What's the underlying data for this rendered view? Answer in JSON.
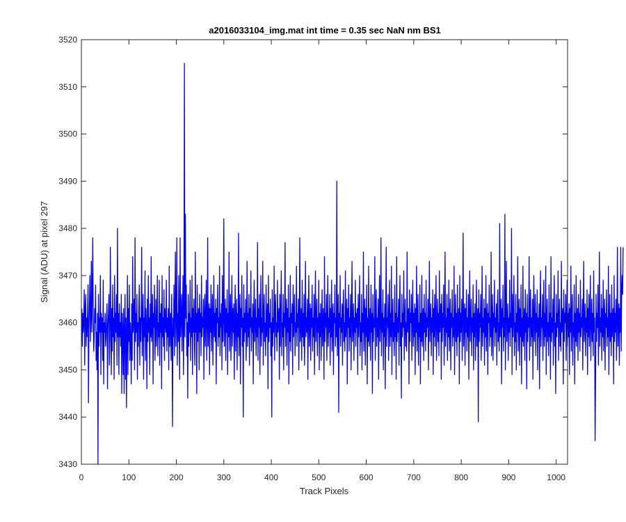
{
  "chart_data": {
    "type": "line",
    "title": "a2016033104_img.mat int time = 0.35 sec  NaN nm BS1",
    "xlabel": "Track Pixels",
    "ylabel": "Signal (ADU) at pixel 297",
    "xlim": [
      0,
      1024
    ],
    "ylim": [
      3430,
      3520
    ],
    "xticks": [
      "0",
      "100",
      "200",
      "300",
      "400",
      "500",
      "600",
      "700",
      "800",
      "900",
      "1000"
    ],
    "yticks": [
      "3430",
      "3440",
      "3450",
      "3460",
      "3470",
      "3480",
      "3490",
      "3500",
      "3510",
      "3520"
    ],
    "grid": false,
    "legend": "none",
    "series": [
      {
        "color": "#0000ff",
        "x_start": 1,
        "x_step": 1,
        "values": [
          3463,
          3455,
          3462,
          3458,
          3460,
          3467,
          3451,
          3463,
          3466,
          3455,
          3461,
          3457,
          3462,
          3468,
          3443,
          3459,
          3464,
          3470,
          3456,
          3461,
          3473,
          3458,
          3466,
          3478,
          3462,
          3454,
          3457,
          3463,
          3460,
          3468,
          3452,
          3458,
          3450,
          3462,
          3430,
          3466,
          3455,
          3461,
          3458,
          3470,
          3449,
          3462,
          3458,
          3461,
          3452,
          3469,
          3447,
          3460,
          3458,
          3462,
          3455,
          3457,
          3461,
          3464,
          3446,
          3459,
          3462,
          3466,
          3451,
          3457,
          3476,
          3460,
          3449,
          3463,
          3454,
          3468,
          3457,
          3461,
          3448,
          3470,
          3456,
          3462,
          3458,
          3466,
          3451,
          3480,
          3457,
          3462,
          3449,
          3464,
          3457,
          3460,
          3455,
          3466,
          3445,
          3462,
          3458,
          3449,
          3463,
          3445,
          3458,
          3466,
          3448,
          3461,
          3442,
          3457,
          3470,
          3449,
          3463,
          3456,
          3468,
          3452,
          3460,
          3457,
          3447,
          3464,
          3452,
          3474,
          3458,
          3461,
          3465,
          3450,
          3478,
          3456,
          3462,
          3458,
          3466,
          3448,
          3460,
          3455,
          3463,
          3468,
          3451,
          3461,
          3456,
          3462,
          3476,
          3453,
          3460,
          3466,
          3448,
          3461,
          3457,
          3471,
          3452,
          3463,
          3459,
          3446,
          3465,
          3456,
          3470,
          3458,
          3461,
          3449,
          3464,
          3457,
          3474,
          3456,
          3460,
          3466,
          3447,
          3462,
          3459,
          3468,
          3452,
          3458,
          3465,
          3455,
          3461,
          3470,
          3453,
          3460,
          3457,
          3469,
          3451,
          3462,
          3458,
          3464,
          3446,
          3470,
          3457,
          3461,
          3455,
          3467,
          3452,
          3463,
          3460,
          3458,
          3469,
          3454,
          3461,
          3457,
          3463,
          3450,
          3472,
          3455,
          3460,
          3462,
          3452,
          3466,
          3458,
          3438,
          3461,
          3457,
          3468,
          3453,
          3463,
          3475,
          3455,
          3460,
          3478,
          3451,
          3462,
          3456,
          3470,
          3458,
          3448,
          3478,
          3457,
          3461,
          3466,
          3454,
          3462,
          3470,
          3449,
          3460,
          3515,
          3457,
          3483,
          3461,
          3468,
          3453,
          3460,
          3444,
          3466,
          3455,
          3462,
          3458,
          3469,
          3452,
          3461,
          3457,
          3470,
          3449,
          3463,
          3458,
          3465,
          3456,
          3451,
          3475,
          3458,
          3462,
          3445,
          3468,
          3456,
          3461,
          3463,
          3450,
          3466,
          3458,
          3462,
          3453,
          3470,
          3457,
          3461,
          3459,
          3465,
          3448,
          3462,
          3466,
          3455,
          3461,
          3469,
          3452,
          3459,
          3478,
          3455,
          3461,
          3464,
          3449,
          3463,
          3458,
          3468,
          3454,
          3461,
          3466,
          3451,
          3460,
          3470,
          3457,
          3462,
          3456,
          3465,
          3447,
          3463,
          3460,
          3468,
          3455,
          3461,
          3457,
          3472,
          3453,
          3462,
          3459,
          3464,
          3450,
          3470,
          3456,
          3461,
          3482,
          3455,
          3460,
          3465,
          3452,
          3463,
          3458,
          3467,
          3449,
          3462,
          3457,
          3475,
          3454,
          3461,
          3466,
          3452,
          3460,
          3470,
          3455,
          3463,
          3458,
          3464,
          3448,
          3461,
          3468,
          3454,
          3460,
          3465,
          3450,
          3462,
          3457,
          3479,
          3453,
          3461,
          3466,
          3447,
          3463,
          3459,
          3470,
          3455,
          3461,
          3440,
          3468,
          3456,
          3462,
          3458,
          3465,
          3452,
          3460,
          3473,
          3455,
          3462,
          3457,
          3466,
          3451,
          3463,
          3459,
          3471,
          3454,
          3461,
          3458,
          3464,
          3447,
          3462,
          3469,
          3456,
          3460,
          3465,
          3453,
          3461,
          3457,
          3477,
          3452,
          3463,
          3459,
          3466,
          3449,
          3460,
          3470,
          3455,
          3461,
          3458,
          3473,
          3451,
          3462,
          3466,
          3456,
          3460,
          3453,
          3468,
          3457,
          3461,
          3464,
          3446,
          3470,
          3456,
          3462,
          3459,
          3465,
          3453,
          3460,
          3440,
          3467,
          3455,
          3461,
          3458,
          3472,
          3452,
          3463,
          3466,
          3457,
          3460,
          3454,
          3469,
          3458,
          3461,
          3463,
          3448,
          3466,
          3455,
          3462,
          3471,
          3453,
          3460,
          3457,
          3466,
          3450,
          3462,
          3459,
          3477,
          3455,
          3461,
          3465,
          3451,
          3463,
          3458,
          3468,
          3447,
          3461,
          3456,
          3470,
          3454,
          3462,
          3460,
          3464,
          3449,
          3468,
          3457,
          3461,
          3466,
          3453,
          3460,
          3458,
          3472,
          3455,
          3462,
          3459,
          3465,
          3450,
          3461,
          3478,
          3456,
          3460,
          3463,
          3452,
          3469,
          3457,
          3462,
          3455,
          3466,
          3451,
          3460,
          3473,
          3457,
          3461,
          3458,
          3465,
          3448,
          3462,
          3470,
          3455,
          3460,
          3464,
          3452,
          3463,
          3459,
          3468,
          3454,
          3461,
          3457,
          3466,
          3449,
          3462,
          3471,
          3456,
          3460,
          3465,
          3453,
          3461,
          3458,
          3469,
          3450,
          3462,
          3457,
          3464,
          3452,
          3460,
          3467,
          3455,
          3461,
          3463,
          3448,
          3474,
          3456,
          3462,
          3459,
          3466,
          3452,
          3460,
          3470,
          3455,
          3461,
          3458,
          3466,
          3451,
          3463,
          3457,
          3469,
          3454,
          3461,
          3464,
          3449,
          3462,
          3460,
          3468,
          3455,
          3461,
          3457,
          3490,
          3453,
          3460,
          3466,
          3441,
          3462,
          3459,
          3470,
          3455,
          3461,
          3458,
          3464,
          3451,
          3463,
          3467,
          3456,
          3460,
          3454,
          3471,
          3457,
          3461,
          3465,
          3447,
          3463,
          3459,
          3468,
          3454,
          3461,
          3457,
          3466,
          3450,
          3462,
          3473,
          3456,
          3460,
          3464,
          3452,
          3461,
          3458,
          3469,
          3455,
          3462,
          3459,
          3463,
          3449,
          3466,
          3457,
          3461,
          3470,
          3453,
          3460,
          3456,
          3466,
          3450,
          3462,
          3458,
          3475,
          3454,
          3461,
          3465,
          3451,
          3463,
          3457,
          3468,
          3447,
          3461,
          3456,
          3472,
          3455,
          3460,
          3463,
          3452,
          3468,
          3458,
          3462,
          3445,
          3466,
          3456,
          3461,
          3459,
          3474,
          3452,
          3463,
          3467,
          3455,
          3461,
          3457,
          3465,
          3448,
          3462,
          3470,
          3456,
          3460,
          3478,
          3453,
          3462,
          3458,
          3467,
          3450,
          3461,
          3457,
          3464,
          3446,
          3463,
          3476,
          3455,
          3461,
          3459,
          3466,
          3452,
          3460,
          3469,
          3455,
          3462,
          3457,
          3472,
          3449,
          3461,
          3465,
          3456,
          3460,
          3453,
          3468,
          3457,
          3462,
          3448,
          3474,
          3456,
          3461,
          3458,
          3465,
          3451,
          3463,
          3470,
          3455,
          3460,
          3444,
          3466,
          3457,
          3462,
          3459,
          3471,
          3452,
          3461,
          3465,
          3455,
          3460,
          3454,
          3475,
          3458,
          3461,
          3463,
          3447,
          3467,
          3456,
          3462,
          3460,
          3466,
          3452,
          3461,
          3469,
          3455,
          3462,
          3457,
          3464,
          3449,
          3463,
          3458,
          3472,
          3454,
          3461,
          3466,
          3451,
          3460,
          3457,
          3468,
          3447,
          3462,
          3456,
          3470,
          3455,
          3461,
          3463,
          3452,
          3466,
          3458,
          3462,
          3454,
          3469,
          3457,
          3461,
          3459,
          3465,
          3450,
          3462,
          3473,
          3456,
          3460,
          3464,
          3453,
          3461,
          3458,
          3467,
          3449,
          3463,
          3457,
          3466,
          3455,
          3461,
          3470,
          3452,
          3460,
          3465,
          3456,
          3462,
          3453,
          3471,
          3458,
          3461,
          3464,
          3448,
          3466,
          3456,
          3462,
          3459,
          3468,
          3451,
          3460,
          3475,
          3455,
          3461,
          3458,
          3466,
          3452,
          3463,
          3457,
          3469,
          3454,
          3461,
          3465,
          3450,
          3462,
          3459,
          3467,
          3455,
          3461,
          3457,
          3472,
          3449,
          3460,
          3466,
          3456,
          3462,
          3453,
          3468,
          3457,
          3461,
          3463,
          3447,
          3470,
          3456,
          3462,
          3458,
          3465,
          3452,
          3461,
          3479,
          3455,
          3460,
          3464,
          3451,
          3463,
          3458,
          3467,
          3454,
          3461,
          3457,
          3466,
          3448,
          3462,
          3471,
          3456,
          3460,
          3465,
          3453,
          3461,
          3458,
          3468,
          3450,
          3462,
          3457,
          3464,
          3452,
          3460,
          3469,
          3455,
          3461,
          3463,
          3439,
          3467,
          3456,
          3462,
          3459,
          3466,
          3452,
          3460,
          3472,
          3455,
          3461,
          3458,
          3465,
          3451,
          3463,
          3457,
          3470,
          3454,
          3461,
          3464,
          3449,
          3462,
          3460,
          3468,
          3455,
          3461,
          3457,
          3475,
          3453,
          3460,
          3466,
          3452,
          3462,
          3459,
          3469,
          3455,
          3461,
          3458,
          3464,
          3451,
          3463,
          3467,
          3456,
          3460,
          3454,
          3481,
          3457,
          3461,
          3465,
          3447,
          3463,
          3459,
          3468,
          3454,
          3461,
          3457,
          3483,
          3450,
          3462,
          3473,
          3456,
          3460,
          3464,
          3452,
          3461,
          3458,
          3469,
          3455,
          3462,
          3459,
          3480,
          3449,
          3466,
          3457,
          3461,
          3470,
          3453,
          3460,
          3456,
          3466,
          3450,
          3462,
          3458,
          3474,
          3454,
          3461,
          3465,
          3451,
          3463,
          3457,
          3468,
          3447,
          3461,
          3456,
          3472,
          3455,
          3460,
          3463,
          3452,
          3467,
          3458,
          3462,
          3446,
          3466,
          3456,
          3461,
          3459,
          3474,
          3452,
          3463,
          3467,
          3455,
          3461,
          3457,
          3465,
          3448,
          3462,
          3470,
          3456,
          3460,
          3466,
          3453,
          3462,
          3458,
          3467,
          3450,
          3461,
          3457,
          3464,
          3446,
          3463,
          3471,
          3455,
          3461,
          3459,
          3466,
          3452,
          3460,
          3469,
          3455,
          3462,
          3457,
          3472,
          3449,
          3461,
          3465,
          3456,
          3460,
          3453,
          3468,
          3457,
          3462,
          3448,
          3474,
          3456,
          3461,
          3458,
          3465,
          3451,
          3463,
          3470,
          3455,
          3460,
          3445,
          3466,
          3457,
          3462,
          3459,
          3471,
          3452,
          3461,
          3465,
          3455,
          3460,
          3454,
          3473,
          3458,
          3461,
          3463,
          3447,
          3467,
          3456,
          3462,
          3460,
          3466,
          3452,
          3461,
          3469,
          3455,
          3462,
          3457,
          3464,
          3449,
          3463,
          3458,
          3472,
          3454,
          3461,
          3466,
          3451,
          3460,
          3457,
          3468,
          3447,
          3462,
          3456,
          3470,
          3455,
          3461,
          3463,
          3452,
          3466,
          3458,
          3462,
          3454,
          3469,
          3457,
          3461,
          3459,
          3465,
          3450,
          3462,
          3473,
          3456,
          3460,
          3464,
          3453,
          3461,
          3458,
          3467,
          3449,
          3463,
          3457,
          3466,
          3455,
          3461,
          3470,
          3452,
          3460,
          3465,
          3456,
          3462,
          3453,
          3471,
          3458,
          3461,
          3435,
          3448,
          3466,
          3456,
          3462,
          3459,
          3468,
          3451,
          3460,
          3475,
          3455,
          3461,
          3458,
          3466,
          3452,
          3463,
          3457,
          3469,
          3454,
          3461,
          3465,
          3450,
          3462,
          3459,
          3467,
          3455,
          3461,
          3457,
          3472,
          3449,
          3460,
          3466,
          3456,
          3462,
          3453,
          3468,
          3457,
          3461,
          3463,
          3447,
          3470,
          3456,
          3462,
          3458,
          3465,
          3452,
          3461,
          3476,
          3455,
          3460,
          3464,
          3451,
          3463,
          3458,
          3476,
          3454,
          3467,
          3470,
          3466,
          3476
        ]
      }
    ]
  }
}
